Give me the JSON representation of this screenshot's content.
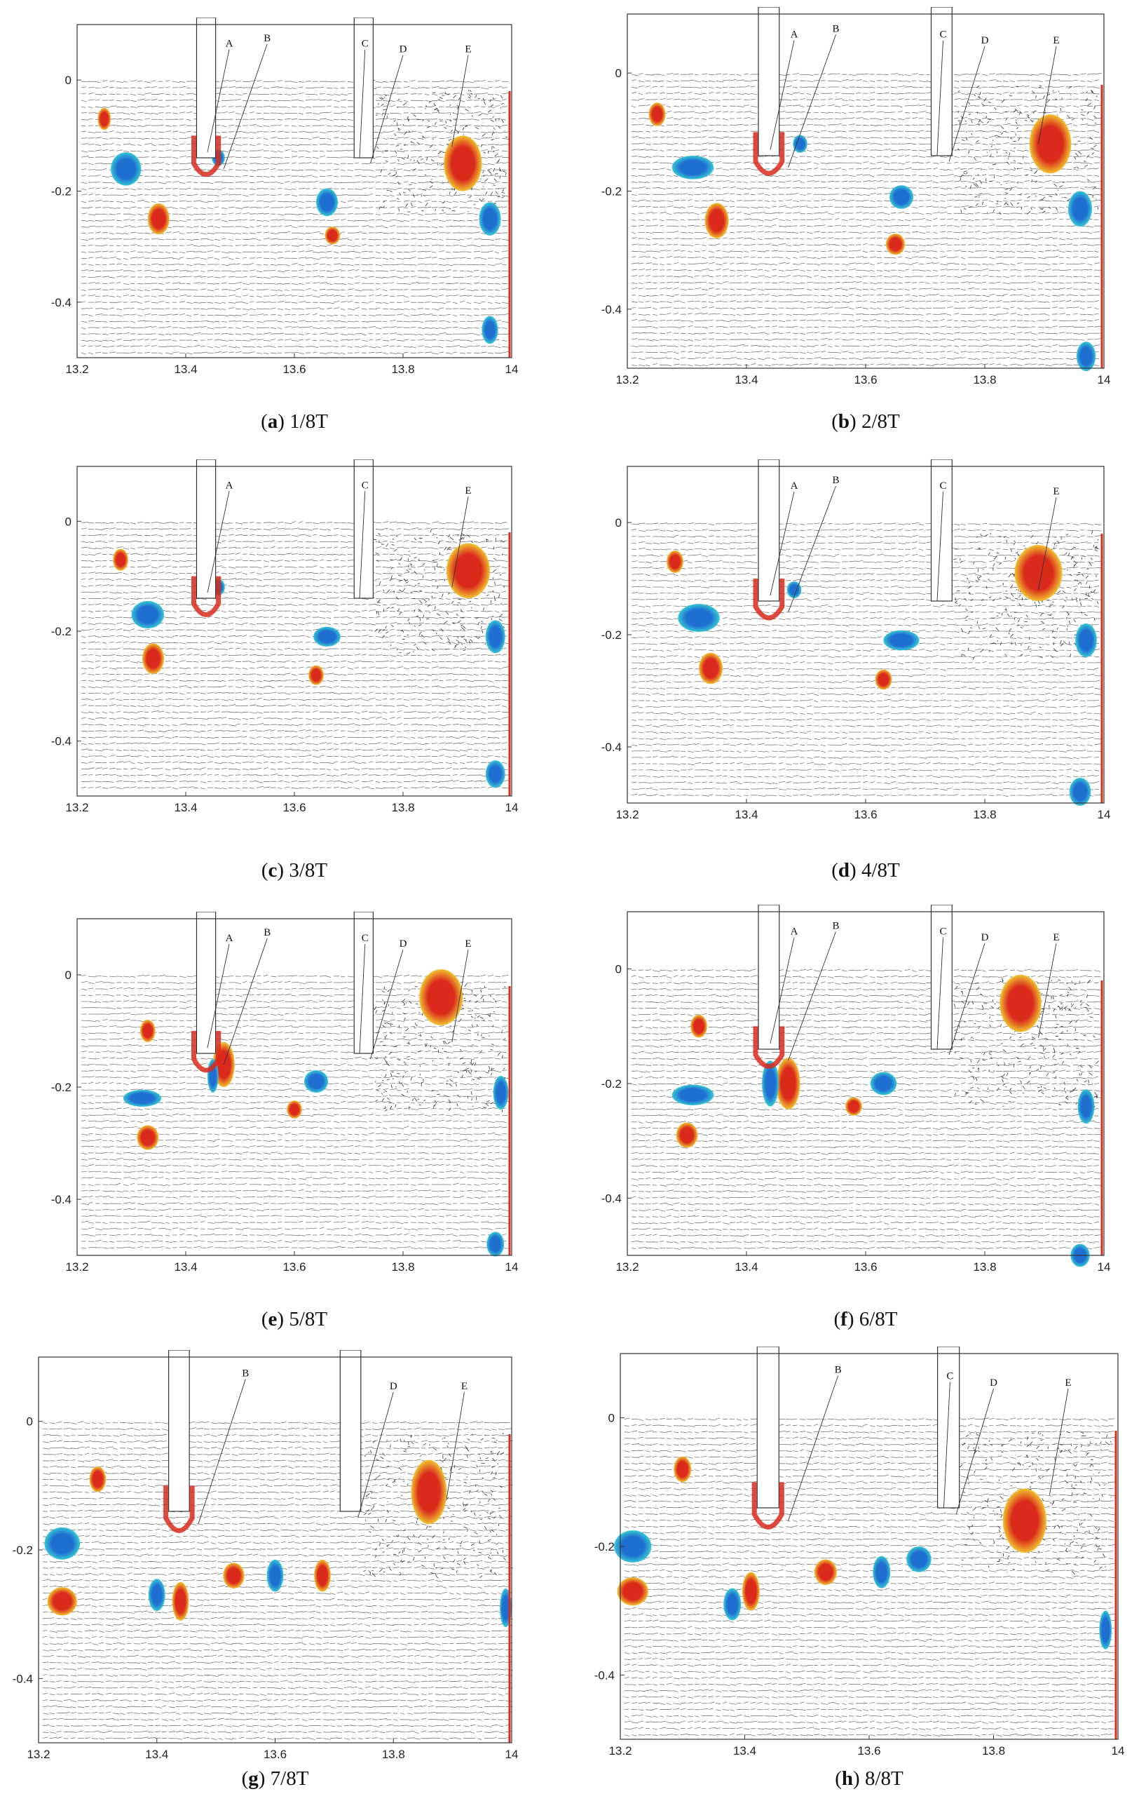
{
  "figure": {
    "panels": [
      {
        "id": "a",
        "letter": "a",
        "time": "1/8T",
        "labels": [
          "A",
          "B",
          "C",
          "D",
          "E"
        ]
      },
      {
        "id": "b",
        "letter": "b",
        "time": "2/8T",
        "labels": [
          "A",
          "B",
          "C",
          "D",
          "E"
        ]
      },
      {
        "id": "c",
        "letter": "c",
        "time": "3/8T",
        "labels": [
          "A",
          "C",
          "E"
        ]
      },
      {
        "id": "d",
        "letter": "d",
        "time": "4/8T",
        "labels": [
          "B",
          "A",
          "C",
          "E"
        ]
      },
      {
        "id": "e",
        "letter": "e",
        "time": "5/8T",
        "labels": [
          "B",
          "A",
          "D",
          "C",
          "E"
        ]
      },
      {
        "id": "f",
        "letter": "f",
        "time": "6/8T",
        "labels": [
          "B",
          "A",
          "D",
          "C",
          "E"
        ]
      },
      {
        "id": "g",
        "letter": "g",
        "time": "7/8T",
        "labels": [
          "B",
          "D",
          "E"
        ]
      },
      {
        "id": "h",
        "letter": "h",
        "time": "8/8T",
        "labels": [
          "B",
          "C",
          "D",
          "E"
        ]
      }
    ]
  },
  "chart_data": {
    "type": "vector-field",
    "x_ticks": [
      "13.2",
      "13.4",
      "13.6",
      "13.8",
      "14"
    ],
    "y_ticks": [
      "0",
      "-0.2",
      "-0.4"
    ],
    "xlim": [
      13.2,
      14.0
    ],
    "ylim": [
      -0.5,
      0.1
    ],
    "colors": {
      "positive_vorticity": "#d92a1c",
      "negative_vorticity": "#1f6fd1",
      "mid_warm": "#f2c230",
      "mid_cool": "#37c7d6"
    }
  }
}
